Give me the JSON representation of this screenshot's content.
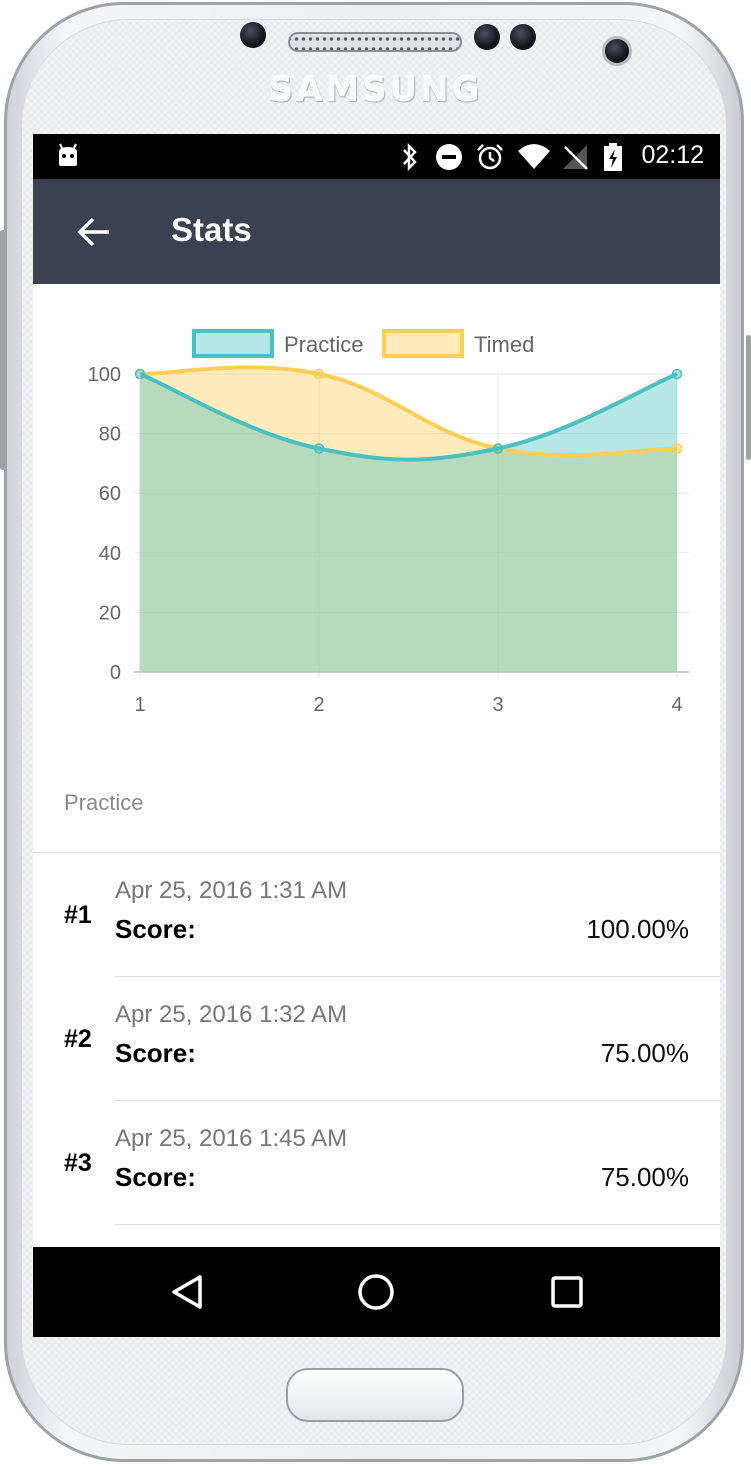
{
  "device": {
    "brand": "SAMSUNG"
  },
  "status_bar": {
    "time": "02:12",
    "icons": [
      "android-debug-icon",
      "bluetooth-icon",
      "do-not-disturb-icon",
      "alarm-icon",
      "wifi-icon",
      "no-signal-icon",
      "battery-charging-icon"
    ]
  },
  "app_bar": {
    "title": "Stats",
    "back_icon": "arrow-back-icon"
  },
  "chart_data": {
    "type": "area",
    "x": [
      1,
      2,
      3,
      4
    ],
    "ylim": [
      0,
      100
    ],
    "yticks": [
      0,
      20,
      40,
      60,
      80,
      100
    ],
    "grid": true,
    "legend_position": "top",
    "series": [
      {
        "name": "Practice",
        "values": [
          100,
          75,
          75,
          100
        ],
        "color": "#4bc0c0",
        "fill": "rgba(75,192,192,0.4)"
      },
      {
        "name": "Timed",
        "values": [
          100,
          100,
          75,
          75
        ],
        "color": "#ffce56",
        "fill": "rgba(255,206,86,0.4)"
      }
    ]
  },
  "list": {
    "section_label": "Practice",
    "items": [
      {
        "number": "#1",
        "date": "Apr 25, 2016 1:31 AM",
        "score_label": "Score:",
        "score": "100.00%"
      },
      {
        "number": "#2",
        "date": "Apr 25, 2016 1:32 AM",
        "score_label": "Score:",
        "score": "75.00%"
      },
      {
        "number": "#3",
        "date": "Apr 25, 2016 1:45 AM",
        "score_label": "Score:",
        "score": "75.00%"
      }
    ]
  },
  "nav_bar": {
    "icons": [
      "back-triangle-icon",
      "home-circle-icon",
      "recents-square-icon"
    ]
  }
}
